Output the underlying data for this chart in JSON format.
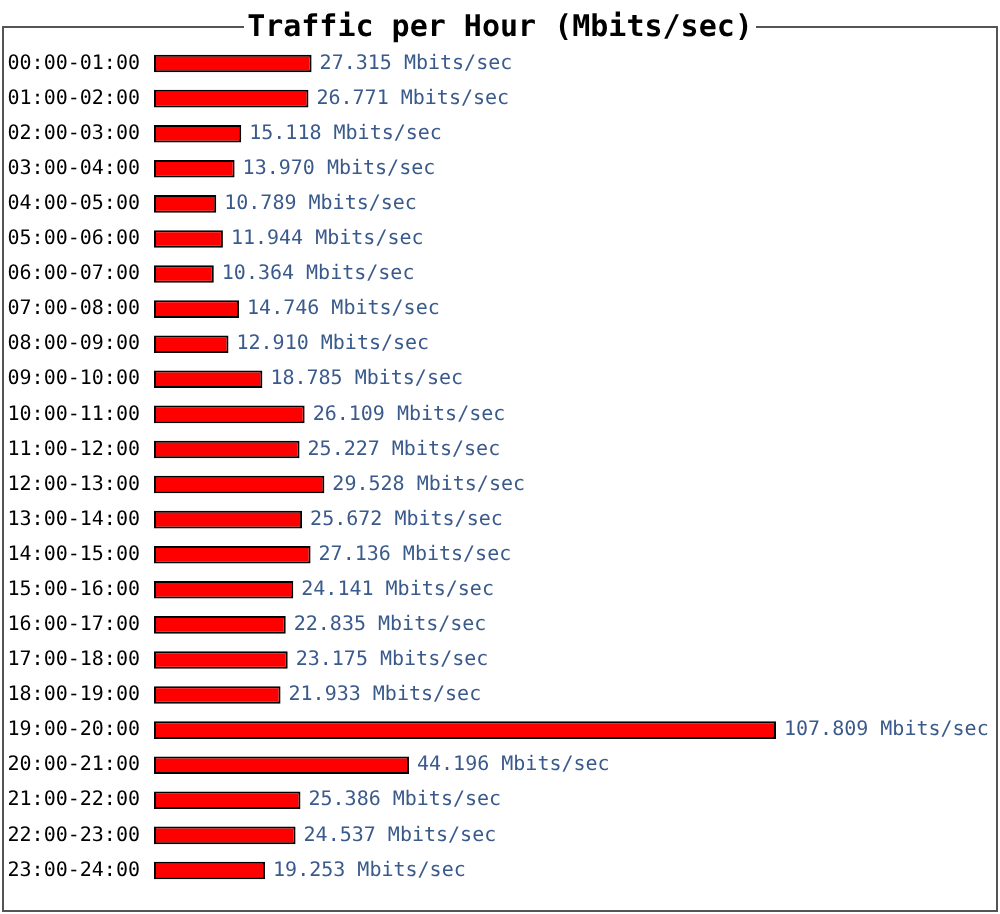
{
  "chart_data": {
    "type": "bar",
    "orientation": "horizontal",
    "title": "Traffic per Hour (Mbits/sec)",
    "categories": [
      "00:00-01:00",
      "01:00-02:00",
      "02:00-03:00",
      "03:00-04:00",
      "04:00-05:00",
      "05:00-06:00",
      "06:00-07:00",
      "07:00-08:00",
      "08:00-09:00",
      "09:00-10:00",
      "10:00-11:00",
      "11:00-12:00",
      "12:00-13:00",
      "13:00-14:00",
      "14:00-15:00",
      "15:00-16:00",
      "16:00-17:00",
      "17:00-18:00",
      "18:00-19:00",
      "19:00-20:00",
      "20:00-21:00",
      "21:00-22:00",
      "22:00-23:00",
      "23:00-24:00"
    ],
    "values": [
      27.315,
      26.771,
      15.118,
      13.97,
      10.789,
      11.944,
      10.364,
      14.746,
      12.91,
      18.785,
      26.109,
      25.227,
      29.528,
      25.672,
      27.136,
      24.141,
      22.835,
      23.175,
      21.933,
      107.809,
      44.196,
      25.386,
      24.537,
      19.253
    ],
    "value_labels": [
      "27.315 Mbits/sec",
      "26.771 Mbits/sec",
      "15.118 Mbits/sec",
      "13.970 Mbits/sec",
      "10.789 Mbits/sec",
      "11.944 Mbits/sec",
      "10.364 Mbits/sec",
      "14.746 Mbits/sec",
      "12.910 Mbits/sec",
      "18.785 Mbits/sec",
      "26.109 Mbits/sec",
      "25.227 Mbits/sec",
      "29.528 Mbits/sec",
      "25.672 Mbits/sec",
      "27.136 Mbits/sec",
      "24.141 Mbits/sec",
      "22.835 Mbits/sec",
      "23.175 Mbits/sec",
      "21.933 Mbits/sec",
      "107.809 Mbits/sec",
      "44.196 Mbits/sec",
      "25.386 Mbits/sec",
      "24.537 Mbits/sec",
      "19.253 Mbits/sec"
    ],
    "color": "#ff0000",
    "tick_labels": "y"
  }
}
